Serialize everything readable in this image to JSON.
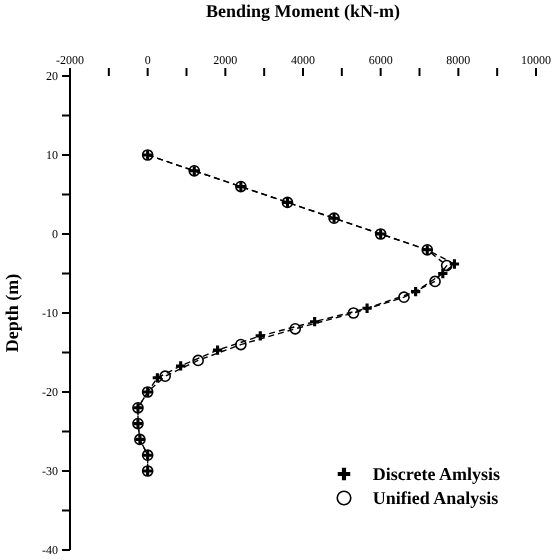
{
  "chart_data": {
    "type": "line",
    "xlabel": "Bending Moment (kN-m)",
    "ylabel": "Depth (m)",
    "xlim": [
      -2000,
      10000
    ],
    "xticks": [
      -2000,
      {
        "value": -1000,
        "label": null
      },
      0,
      {
        "value": 1000,
        "label": null
      },
      2000,
      {
        "value": 3000,
        "label": null
      },
      4000,
      {
        "value": 5000,
        "label": null
      },
      6000,
      {
        "value": 7000,
        "label": null
      },
      8000,
      {
        "value": 9000,
        "label": null
      },
      10000
    ],
    "ylim": [
      -40,
      20
    ],
    "yticks": [
      20,
      {
        "value": 15,
        "label": null
      },
      10,
      {
        "value": 5,
        "label": null
      },
      0,
      {
        "value": -5,
        "label": null
      },
      -10,
      {
        "value": -15,
        "label": null
      },
      -20,
      {
        "value": -25,
        "label": null
      },
      -30,
      {
        "value": -35,
        "label": null
      },
      -40
    ],
    "grid": false,
    "legend": "bottom right",
    "line_style": "dashed",
    "series": [
      {
        "name": "Discrete Amlysis",
        "color": "#000000",
        "marker": "cross",
        "x": [
          0,
          1200,
          2400,
          3600,
          4800,
          6000,
          7200,
          7900,
          7600,
          6900,
          5650,
          4300,
          2900,
          1800,
          850,
          250,
          0,
          -250,
          -250,
          -200,
          0,
          0
        ],
        "values": [
          10,
          8,
          6,
          4,
          2,
          0,
          -2,
          -3.8,
          -5,
          -7.3,
          -9.4,
          -11.1,
          -12.9,
          -14.7,
          -16.7,
          -18.2,
          -20,
          -22,
          -24,
          -26,
          -28,
          -30
        ]
      },
      {
        "name": "Unified Analysis",
        "color": "#000000",
        "marker": "circle",
        "x": [
          0,
          1200,
          2400,
          3600,
          4800,
          6000,
          7200,
          7700,
          7400,
          6600,
          5300,
          3800,
          2400,
          1300,
          450,
          0,
          -250,
          -250,
          -200,
          0,
          0
        ],
        "values": [
          10,
          8,
          6,
          4,
          2,
          0,
          -2,
          -4,
          -6,
          -8,
          -10,
          -12,
          -14,
          -16,
          -18,
          -20,
          -22,
          -24,
          -26,
          -28,
          -30
        ]
      }
    ]
  }
}
